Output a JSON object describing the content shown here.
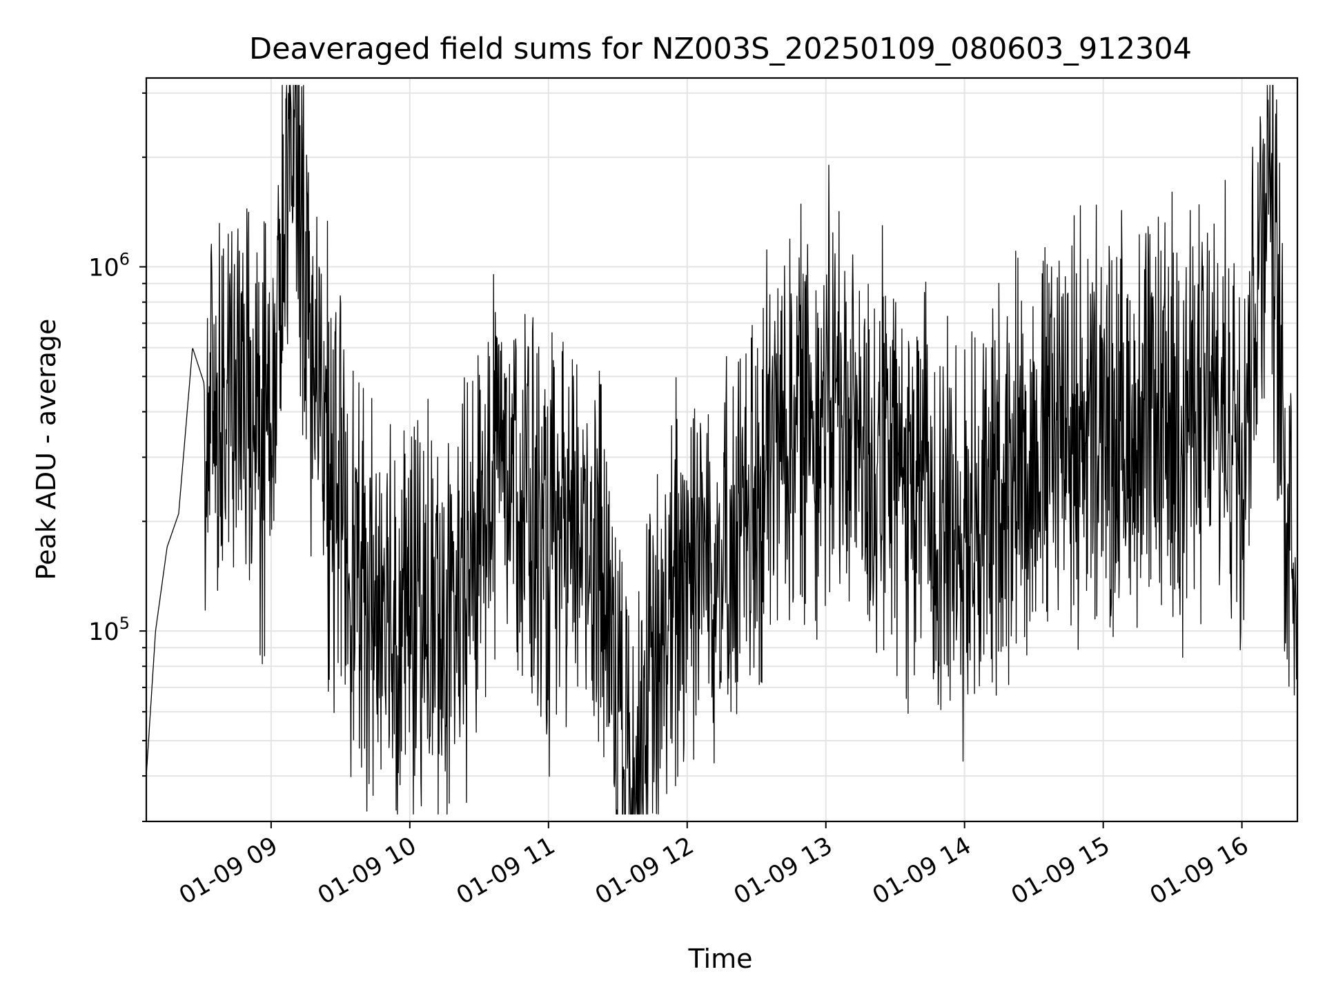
{
  "chart_data": {
    "type": "line",
    "title": "Deaveraged field sums for NZ003S_20250109_080603_912304",
    "xlabel": "Time",
    "ylabel": "Peak ADU - average",
    "y_scale": "log",
    "ylim": [
      30000,
      3300000
    ],
    "xlim": [
      "2025-01-09 08:06",
      "2025-01-09 16:24"
    ],
    "grid": true,
    "legend": "none",
    "line_color": "#000000",
    "x_ticks": [
      "01-09 09",
      "01-09 10",
      "01-09 11",
      "01-09 12",
      "01-09 13",
      "01-09 14",
      "01-09 15",
      "01-09 16"
    ],
    "y_tick_labels": [
      {
        "value": 100000,
        "base": "10",
        "exp": "5"
      },
      {
        "value": 1000000,
        "base": "10",
        "exp": "6"
      }
    ],
    "anchor_points": [
      {
        "x": "2025-01-09 08:06",
        "y": 40000
      },
      {
        "x": "2025-01-09 08:10",
        "y": 100000
      },
      {
        "x": "2025-01-09 08:15",
        "y": 170000
      },
      {
        "x": "2025-01-09 08:20",
        "y": 210000
      },
      {
        "x": "2025-01-09 08:26",
        "y": 600000
      },
      {
        "x": "2025-01-09 08:35",
        "y": 400000
      },
      {
        "x": "2025-01-09 08:45",
        "y": 430000
      },
      {
        "x": "2025-01-09 09:00",
        "y": 350000
      },
      {
        "x": "2025-01-09 09:10",
        "y": 2700000
      },
      {
        "x": "2025-01-09 09:20",
        "y": 400000
      },
      {
        "x": "2025-01-09 09:40",
        "y": 120000
      },
      {
        "x": "2025-01-09 10:00",
        "y": 110000
      },
      {
        "x": "2025-01-09 10:20",
        "y": 100000
      },
      {
        "x": "2025-01-09 10:40",
        "y": 380000
      },
      {
        "x": "2025-01-09 11:00",
        "y": 150000
      },
      {
        "x": "2025-01-09 11:20",
        "y": 200000
      },
      {
        "x": "2025-01-09 11:36",
        "y": 37000
      },
      {
        "x": "2025-01-09 12:00",
        "y": 180000
      },
      {
        "x": "2025-01-09 12:20",
        "y": 150000
      },
      {
        "x": "2025-01-09 12:40",
        "y": 350000
      },
      {
        "x": "2025-01-09 13:00",
        "y": 450000
      },
      {
        "x": "2025-01-09 13:20",
        "y": 300000
      },
      {
        "x": "2025-01-09 13:40",
        "y": 250000
      },
      {
        "x": "2025-01-09 14:00",
        "y": 180000
      },
      {
        "x": "2025-01-09 14:20",
        "y": 280000
      },
      {
        "x": "2025-01-09 14:40",
        "y": 380000
      },
      {
        "x": "2025-01-09 15:00",
        "y": 350000
      },
      {
        "x": "2025-01-09 15:20",
        "y": 360000
      },
      {
        "x": "2025-01-09 15:40",
        "y": 400000
      },
      {
        "x": "2025-01-09 16:00",
        "y": 370000
      },
      {
        "x": "2025-01-09 16:12",
        "y": 2200000
      },
      {
        "x": "2025-01-09 16:18",
        "y": 300000
      },
      {
        "x": "2025-01-09 16:24",
        "y": 160000
      }
    ]
  }
}
